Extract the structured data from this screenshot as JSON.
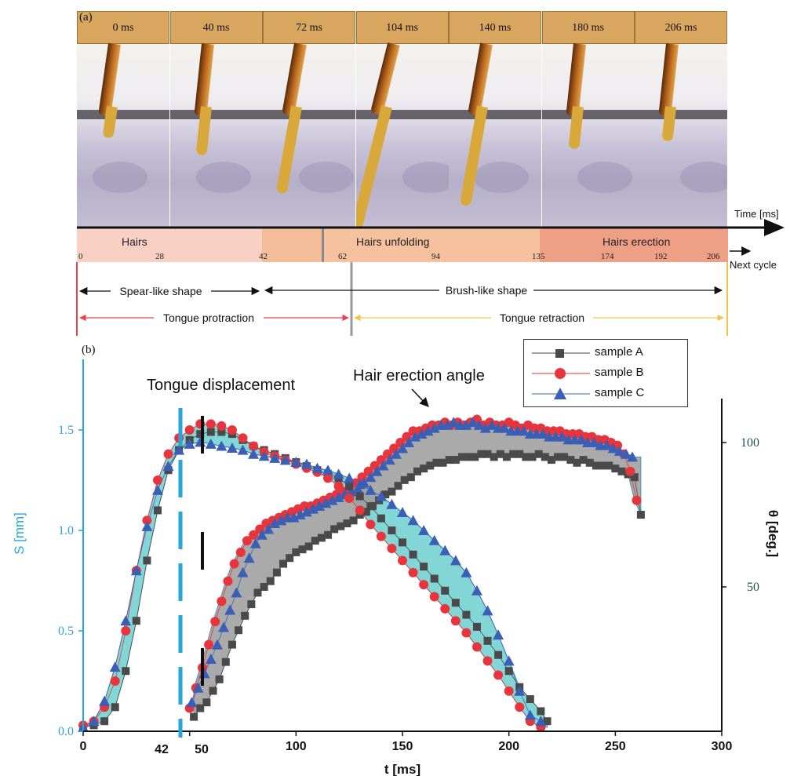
{
  "panel_a": {
    "label": "(a)",
    "frames": [
      "0 ms",
      "40 ms",
      "72 ms",
      "104 ms",
      "140 ms",
      "180 ms",
      "206 ms"
    ],
    "time_axis_label": "Time [ms]",
    "phases": [
      "Hairs",
      "Hairs unfolding",
      "Hairs erection"
    ],
    "ticks": [
      "0",
      "28",
      "42",
      "62",
      "94",
      "135",
      "174",
      "192",
      "206"
    ],
    "next_cycle": "Next cycle",
    "shape_labels": {
      "spear": "Spear-like shape",
      "brush": "Brush-like shape"
    },
    "motion_labels": {
      "protraction": "Tongue protraction",
      "retraction": "Tongue retraction"
    },
    "colors": {
      "hairs": "#f9d1c4",
      "unfolding": "#f5c19e",
      "erection": "#ee9f86",
      "protraction": "#e8434a",
      "retraction": "#f0c54c",
      "black_arrow": "#111111"
    }
  },
  "panel_b": {
    "label": "(b)",
    "annotations": {
      "displacement": "Tongue displacement",
      "angle": "Hair erection angle"
    },
    "extra_ticks": [
      "42",
      "50"
    ]
  },
  "chart_data": {
    "type": "scatter",
    "xlabel": "t [ms]",
    "ylabel_left": "S [mm]",
    "ylabel_right": "θ [deg.]",
    "xlim": [
      0,
      300
    ],
    "ylim_left": [
      0,
      1.75
    ],
    "ylim_right": [
      0,
      120
    ],
    "x_ticks": [
      "0",
      "50",
      "100",
      "150",
      "200",
      "250",
      "300"
    ],
    "left_ticks": [
      "0.0",
      "0.5",
      "1.0",
      "1.5"
    ],
    "right_ticks": [
      "50",
      "100"
    ],
    "legend_position": "top-right",
    "colors": {
      "axis_left": "#29a6d8",
      "axis_right": "#1f4b55",
      "band_s": "#6ecfd0",
      "band_theta": "#9c9c9c",
      "sample_A": "#4a4a4a",
      "sample_B": "#e8343c",
      "sample_C": "#3b5fb4"
    },
    "series_S": [
      {
        "name": "sample A",
        "marker": "square",
        "x": [
          0,
          5,
          10,
          15,
          20,
          25,
          30,
          35,
          40,
          45,
          50,
          55,
          60,
          65,
          70,
          75,
          80,
          85,
          90,
          95,
          100,
          105,
          110,
          115,
          120,
          125,
          130,
          135,
          140,
          145,
          150,
          155,
          160,
          165,
          170,
          175,
          180,
          185,
          190,
          195,
          200,
          205,
          210,
          215,
          218
        ],
        "y": [
          0.02,
          0.03,
          0.05,
          0.12,
          0.3,
          0.55,
          0.85,
          1.1,
          1.3,
          1.4,
          1.45,
          1.48,
          1.49,
          1.49,
          1.48,
          1.45,
          1.42,
          1.4,
          1.38,
          1.36,
          1.34,
          1.32,
          1.3,
          1.28,
          1.26,
          1.22,
          1.17,
          1.12,
          1.06,
          1.0,
          0.94,
          0.88,
          0.82,
          0.76,
          0.7,
          0.64,
          0.58,
          0.52,
          0.45,
          0.38,
          0.3,
          0.22,
          0.16,
          0.1,
          0.05
        ]
      },
      {
        "name": "sample B",
        "marker": "circle",
        "x": [
          0,
          5,
          10,
          15,
          20,
          25,
          30,
          35,
          40,
          45,
          50,
          55,
          60,
          65,
          70,
          75,
          80,
          85,
          90,
          95,
          100,
          105,
          110,
          115,
          120,
          125,
          130,
          135,
          140,
          145,
          150,
          155,
          160,
          165,
          170,
          175,
          180,
          185,
          190,
          195,
          200,
          205,
          210,
          215
        ],
        "y": [
          0.03,
          0.05,
          0.12,
          0.25,
          0.5,
          0.8,
          1.05,
          1.25,
          1.38,
          1.46,
          1.5,
          1.53,
          1.53,
          1.52,
          1.5,
          1.46,
          1.42,
          1.39,
          1.37,
          1.35,
          1.33,
          1.31,
          1.29,
          1.26,
          1.22,
          1.16,
          1.1,
          1.03,
          0.97,
          0.91,
          0.85,
          0.79,
          0.73,
          0.67,
          0.61,
          0.55,
          0.49,
          0.42,
          0.35,
          0.28,
          0.2,
          0.12,
          0.05,
          0.02
        ]
      },
      {
        "name": "sample C",
        "marker": "triangle",
        "x": [
          0,
          5,
          10,
          15,
          20,
          25,
          30,
          35,
          40,
          45,
          50,
          55,
          60,
          65,
          70,
          75,
          80,
          85,
          90,
          95,
          100,
          105,
          110,
          115,
          120,
          125,
          130,
          135,
          140,
          145,
          150,
          155,
          160,
          165,
          170,
          175,
          180,
          185,
          190,
          195,
          200,
          205,
          210,
          215
        ],
        "y": [
          0.02,
          0.05,
          0.15,
          0.32,
          0.55,
          0.8,
          1.02,
          1.2,
          1.32,
          1.4,
          1.43,
          1.44,
          1.43,
          1.42,
          1.41,
          1.4,
          1.38,
          1.37,
          1.36,
          1.35,
          1.34,
          1.33,
          1.31,
          1.3,
          1.28,
          1.26,
          1.23,
          1.2,
          1.17,
          1.13,
          1.09,
          1.05,
          1.0,
          0.95,
          0.9,
          0.85,
          0.79,
          0.7,
          0.6,
          0.48,
          0.35,
          0.2,
          0.08,
          0.05
        ]
      }
    ],
    "series_theta": [
      {
        "name": "sample A",
        "marker": "square",
        "x": [
          52,
          55,
          58,
          61,
          64,
          67,
          70,
          73,
          76,
          79,
          82,
          85,
          88,
          91,
          94,
          97,
          100,
          103,
          106,
          109,
          112,
          115,
          118,
          121,
          124,
          127,
          130,
          133,
          136,
          139,
          142,
          145,
          148,
          151,
          154,
          157,
          160,
          163,
          166,
          169,
          172,
          175,
          178,
          181,
          184,
          187,
          190,
          193,
          196,
          199,
          202,
          205,
          208,
          211,
          214,
          217,
          220,
          223,
          226,
          229,
          232,
          235,
          238,
          241,
          244,
          247,
          250,
          253,
          256,
          259,
          262
        ],
        "y": [
          5,
          8,
          10,
          14,
          18,
          24,
          30,
          35,
          40,
          44,
          48,
          50,
          52,
          55,
          58,
          60,
          62,
          63,
          64,
          66,
          67,
          68,
          70,
          71,
          72,
          73,
          75,
          76,
          78,
          80,
          82,
          83,
          85,
          87,
          88,
          90,
          91,
          92,
          93,
          93,
          94,
          94,
          95,
          95,
          95,
          96,
          96,
          95,
          96,
          95,
          96,
          96,
          95,
          95,
          96,
          95,
          94,
          95,
          95,
          94,
          93,
          94,
          93,
          92,
          92,
          92,
          91,
          90,
          89,
          88,
          75
        ]
      },
      {
        "name": "sample B",
        "marker": "circle",
        "x": [
          50,
          53,
          56,
          59,
          62,
          65,
          68,
          71,
          74,
          77,
          80,
          83,
          86,
          89,
          92,
          95,
          98,
          101,
          104,
          107,
          110,
          113,
          116,
          119,
          122,
          125,
          128,
          131,
          134,
          137,
          140,
          143,
          146,
          149,
          152,
          155,
          158,
          161,
          164,
          167,
          170,
          173,
          176,
          179,
          182,
          185,
          188,
          191,
          194,
          197,
          200,
          203,
          206,
          209,
          212,
          215,
          218,
          221,
          224,
          227,
          230,
          233,
          236,
          239,
          242,
          245,
          248,
          251,
          254,
          257,
          260
        ],
        "y": [
          8,
          15,
          22,
          30,
          38,
          45,
          52,
          58,
          62,
          66,
          68,
          70,
          72,
          73,
          74,
          75,
          76,
          77,
          78,
          78,
          79,
          80,
          81,
          82,
          83,
          84,
          86,
          88,
          90,
          92,
          94,
          96,
          98,
          100,
          102,
          104,
          104,
          105,
          106,
          106,
          107,
          106,
          107,
          106,
          107,
          108,
          106,
          107,
          106,
          106,
          107,
          106,
          105,
          106,
          105,
          105,
          104,
          104,
          104,
          103,
          103,
          103,
          102,
          102,
          101,
          101,
          100,
          99,
          96,
          90,
          80
        ]
      },
      {
        "name": "sample C",
        "marker": "triangle",
        "x": [
          51,
          54,
          57,
          60,
          63,
          66,
          69,
          72,
          75,
          78,
          81,
          84,
          87,
          90,
          93,
          96,
          99,
          102,
          105,
          108,
          111,
          114,
          117,
          120,
          123,
          126,
          129,
          132,
          135,
          138,
          141,
          144,
          147,
          150,
          153,
          156,
          159,
          162,
          165,
          168,
          171,
          174,
          177,
          180,
          183,
          186,
          189,
          192,
          195,
          198,
          201,
          204,
          207,
          210,
          213,
          216,
          219,
          222,
          225,
          228,
          231,
          234,
          237,
          240,
          243,
          246,
          249,
          252,
          255,
          258
        ],
        "y": [
          10,
          15,
          20,
          25,
          30,
          36,
          42,
          48,
          55,
          60,
          65,
          68,
          70,
          72,
          73,
          74,
          74,
          75,
          76,
          77,
          78,
          79,
          80,
          81,
          82,
          83,
          84,
          86,
          88,
          90,
          92,
          94,
          96,
          98,
          100,
          102,
          103,
          104,
          105,
          106,
          106,
          107,
          106,
          106,
          107,
          106,
          105,
          106,
          105,
          105,
          104,
          104,
          104,
          103,
          103,
          103,
          102,
          102,
          102,
          101,
          101,
          101,
          100,
          100,
          99,
          99,
          98,
          97,
          96,
          95
        ]
      }
    ]
  }
}
